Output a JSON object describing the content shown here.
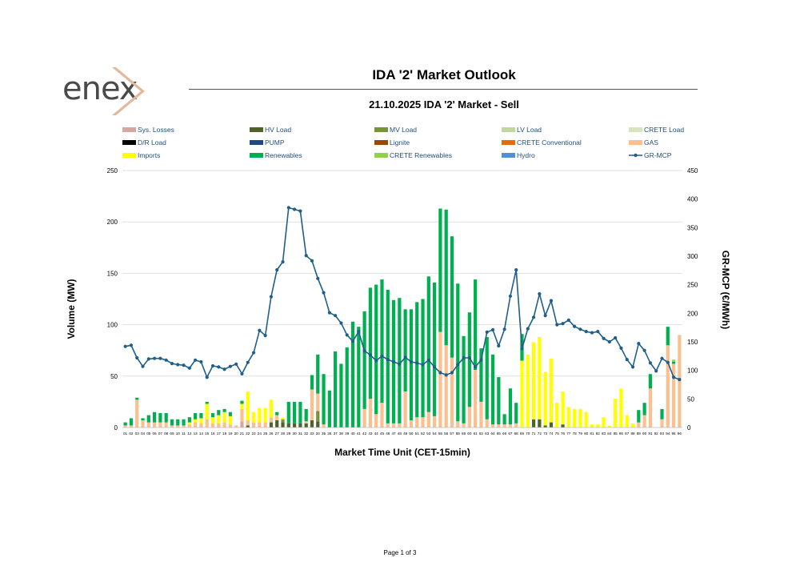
{
  "header": {
    "logo_text": "enex",
    "title": "IDA '2' Market Outlook",
    "subtitle": "21.10.2025  IDA '2' Market - Sell"
  },
  "footer": {
    "page_label": "Page 1 of 3"
  },
  "chart_data": {
    "type": "bar+line",
    "xlabel": "Market Time Unit (CET-15min)",
    "ylabel": "Volume (MW)",
    "y2label": "GR-MCP (€/MWh)",
    "ylim": [
      0,
      250
    ],
    "yticks": [
      0,
      50,
      100,
      150,
      200,
      250
    ],
    "y2lim": [
      0,
      450
    ],
    "y2ticks": [
      0,
      50,
      100,
      150,
      200,
      250,
      300,
      350,
      400,
      450
    ],
    "grid": true,
    "categories": [
      "01",
      "02",
      "03",
      "04",
      "05",
      "06",
      "07",
      "08",
      "09",
      "10",
      "11",
      "12",
      "13",
      "14",
      "15",
      "16",
      "17",
      "18",
      "19",
      "20",
      "21",
      "22",
      "23",
      "24",
      "25",
      "26",
      "27",
      "28",
      "29",
      "30",
      "31",
      "32",
      "33",
      "34",
      "35",
      "36",
      "37",
      "38",
      "39",
      "40",
      "41",
      "42",
      "43",
      "44",
      "45",
      "46",
      "47",
      "48",
      "49",
      "50",
      "51",
      "52",
      "53",
      "54",
      "55",
      "56",
      "57",
      "58",
      "59",
      "60",
      "61",
      "62",
      "63",
      "64",
      "65",
      "66",
      "67",
      "68",
      "69",
      "70",
      "71",
      "72",
      "73",
      "74",
      "75",
      "76",
      "77",
      "78",
      "79",
      "80",
      "81",
      "82",
      "83",
      "84",
      "85",
      "86",
      "87",
      "88",
      "89",
      "90",
      "91",
      "92",
      "93",
      "94",
      "95",
      "96"
    ],
    "legend": [
      {
        "name": "Sys. Losses",
        "color": "#d9a5a0",
        "kind": "bar"
      },
      {
        "name": "HV Load",
        "color": "#4f6228",
        "kind": "bar"
      },
      {
        "name": "MV Load",
        "color": "#77933c",
        "kind": "bar"
      },
      {
        "name": "LV Load",
        "color": "#c3d69b",
        "kind": "bar"
      },
      {
        "name": "CRETE Load",
        "color": "#d7e4bd",
        "kind": "bar"
      },
      {
        "name": "D/R Load",
        "color": "#000000",
        "kind": "bar"
      },
      {
        "name": "PUMP",
        "color": "#1f497d",
        "kind": "bar"
      },
      {
        "name": "Lignite",
        "color": "#984807",
        "kind": "bar"
      },
      {
        "name": "CRETE Conventional",
        "color": "#e46c0a",
        "kind": "bar"
      },
      {
        "name": "GAS",
        "color": "#fac090",
        "kind": "bar"
      },
      {
        "name": "Imports",
        "color": "#ffff00",
        "kind": "bar"
      },
      {
        "name": "Renewables",
        "color": "#00b050",
        "kind": "bar"
      },
      {
        "name": "CRETE Renewables",
        "color": "#92d050",
        "kind": "bar"
      },
      {
        "name": "Hydro",
        "color": "#558ed5",
        "kind": "bar"
      },
      {
        "name": "GR-MCP",
        "color": "#1f5f8b",
        "kind": "line"
      }
    ],
    "series": [
      {
        "name": "Sys. Losses",
        "values": [
          0,
          0,
          0,
          0,
          0,
          0,
          0,
          0,
          0,
          0,
          0,
          0,
          0,
          0,
          0,
          0,
          0,
          0,
          0,
          0,
          6,
          0,
          0,
          0,
          0,
          0,
          0,
          0,
          0,
          0,
          0,
          0,
          0,
          0,
          0,
          0,
          0,
          0,
          0,
          0,
          0,
          0,
          0,
          0,
          0,
          0,
          0,
          0,
          0,
          0,
          0,
          0,
          0,
          0,
          0,
          0,
          0,
          0,
          0,
          0,
          0,
          0,
          0,
          0,
          0,
          0,
          0,
          0,
          0,
          0,
          0,
          0,
          0,
          0,
          0,
          0,
          0,
          0,
          0,
          0,
          0,
          0,
          0,
          0,
          0,
          0,
          0,
          0,
          0,
          0,
          0,
          0,
          0,
          0,
          0,
          0
        ]
      },
      {
        "name": "HV Load",
        "values": [
          0,
          0,
          0,
          0,
          0,
          0,
          0,
          0,
          0,
          0,
          0,
          0,
          0,
          0,
          0,
          0,
          0,
          0,
          0,
          0,
          0,
          2,
          0,
          0,
          0,
          5,
          7,
          5,
          4,
          4,
          4,
          4,
          7,
          6,
          0,
          0,
          0,
          0,
          0,
          0,
          0,
          0,
          0,
          0,
          0,
          0,
          0,
          0,
          0,
          0,
          0,
          0,
          0,
          0,
          0,
          0,
          0,
          0,
          0,
          0,
          0,
          0,
          0,
          0,
          0,
          0,
          0,
          0,
          0,
          0,
          8,
          8,
          2,
          5,
          0,
          3,
          0,
          0,
          0,
          0,
          0,
          0,
          0,
          0,
          0,
          0,
          0,
          0,
          0,
          0,
          0,
          0,
          0,
          0,
          0,
          0
        ]
      },
      {
        "name": "MV Load",
        "values": [
          0,
          0,
          0,
          0,
          0,
          0,
          0,
          0,
          0,
          0,
          0,
          0,
          0,
          0,
          0,
          0,
          0,
          0,
          0,
          0,
          0,
          0,
          0,
          0,
          0,
          0,
          0,
          3,
          0,
          0,
          0,
          0,
          0,
          10,
          0,
          0,
          0,
          0,
          0,
          0,
          0,
          0,
          0,
          0,
          0,
          0,
          0,
          0,
          0,
          0,
          0,
          0,
          0,
          0,
          0,
          0,
          0,
          0,
          0,
          0,
          0,
          0,
          0,
          0,
          0,
          0,
          0,
          0,
          0,
          0,
          0,
          0,
          0,
          0,
          0,
          0,
          0,
          0,
          0,
          0,
          0,
          0,
          0,
          0,
          0,
          0,
          0,
          0,
          0,
          0,
          0,
          0,
          0,
          0,
          0,
          0
        ]
      },
      {
        "name": "GAS",
        "values": [
          2,
          2,
          27,
          7,
          5,
          5,
          5,
          5,
          2,
          2,
          2,
          3,
          5,
          4,
          8,
          4,
          4,
          5,
          3,
          2,
          12,
          5,
          5,
          5,
          5,
          5,
          5,
          0,
          0,
          0,
          0,
          2,
          30,
          17,
          3,
          0,
          0,
          0,
          0,
          0,
          0,
          18,
          28,
          13,
          24,
          4,
          4,
          4,
          35,
          7,
          10,
          10,
          15,
          11,
          93,
          80,
          68,
          6,
          4,
          20,
          56,
          25,
          8,
          3,
          3,
          3,
          3,
          4,
          0,
          0,
          0,
          0,
          0,
          0,
          0,
          0,
          0,
          0,
          0,
          0,
          0,
          0,
          0,
          0,
          0,
          0,
          0,
          0,
          5,
          12,
          38,
          0,
          8,
          80,
          62,
          90
        ]
      },
      {
        "name": "Imports",
        "values": [
          0,
          0,
          0,
          0,
          0,
          0,
          0,
          0,
          0,
          0,
          0,
          2,
          3,
          5,
          15,
          6,
          8,
          10,
          8,
          0,
          5,
          28,
          10,
          14,
          14,
          17,
          0,
          2,
          0,
          0,
          0,
          0,
          0,
          0,
          0,
          0,
          0,
          0,
          0,
          0,
          0,
          0,
          0,
          0,
          0,
          0,
          0,
          0,
          0,
          0,
          0,
          0,
          0,
          0,
          0,
          0,
          0,
          0,
          0,
          0,
          0,
          0,
          0,
          0,
          0,
          0,
          0,
          0,
          65,
          71,
          75,
          80,
          52,
          62,
          24,
          32,
          20,
          18,
          18,
          15,
          3,
          3,
          10,
          2,
          28,
          38,
          12,
          4,
          0,
          0,
          0,
          0,
          0,
          0,
          0,
          0
        ]
      },
      {
        "name": "Renewables",
        "values": [
          3,
          7,
          2,
          2,
          7,
          10,
          9,
          9,
          6,
          6,
          6,
          5,
          6,
          5,
          2,
          4,
          5,
          3,
          4,
          0,
          3,
          0,
          0,
          0,
          0,
          0,
          3,
          0,
          21,
          21,
          21,
          12,
          14,
          38,
          49,
          36,
          74,
          62,
          78,
          103,
          98,
          95,
          108,
          126,
          120,
          130,
          120,
          122,
          80,
          108,
          112,
          115,
          132,
          130,
          120,
          132,
          118,
          134,
          85,
          92,
          88,
          52,
          80,
          68,
          46,
          10,
          35,
          20,
          26,
          0,
          0,
          0,
          0,
          0,
          0,
          0,
          0,
          0,
          0,
          0,
          0,
          0,
          0,
          0,
          0,
          0,
          0,
          0,
          12,
          12,
          14,
          0,
          10,
          18,
          2,
          0
        ]
      },
      {
        "name": "CRETE Renewables",
        "values": [
          0,
          0,
          0,
          0,
          0,
          0,
          0,
          0,
          0,
          0,
          0,
          0,
          0,
          0,
          0,
          0,
          0,
          0,
          0,
          0,
          0,
          0,
          0,
          0,
          0,
          0,
          0,
          0,
          0,
          0,
          0,
          0,
          0,
          0,
          0,
          0,
          0,
          0,
          0,
          0,
          0,
          0,
          0,
          0,
          0,
          0,
          0,
          0,
          0,
          0,
          0,
          0,
          0,
          0,
          0,
          0,
          0,
          0,
          0,
          0,
          0,
          0,
          0,
          0,
          0,
          0,
          0,
          0,
          0,
          0,
          0,
          0,
          0,
          0,
          0,
          0,
          0,
          0,
          0,
          0,
          0,
          0,
          0,
          0,
          0,
          0,
          0,
          0,
          0,
          0,
          0,
          0,
          0,
          0,
          2,
          0
        ]
      },
      {
        "name": "GR-MCP",
        "axis": "right",
        "values": [
          142,
          144,
          122,
          107,
          120,
          121,
          121,
          118,
          112,
          110,
          109,
          104,
          118,
          115,
          88,
          108,
          106,
          102,
          107,
          111,
          94,
          114,
          131,
          170,
          161,
          229,
          276,
          290,
          385,
          382,
          379,
          301,
          292,
          261,
          236,
          201,
          196,
          183,
          162,
          151,
          168,
          134,
          127,
          117,
          125,
          119,
          115,
          111,
          123,
          115,
          113,
          110,
          118,
          106,
          96,
          92,
          96,
          110,
          122,
          122,
          106,
          118,
          167,
          171,
          143,
          172,
          230,
          276,
          138,
          173,
          193,
          234,
          196,
          222,
          180,
          182,
          188,
          177,
          172,
          168,
          166,
          168,
          156,
          150,
          157,
          139,
          119,
          106,
          147,
          135,
          113,
          99,
          121,
          114,
          88,
          84
        ]
      }
    ]
  }
}
